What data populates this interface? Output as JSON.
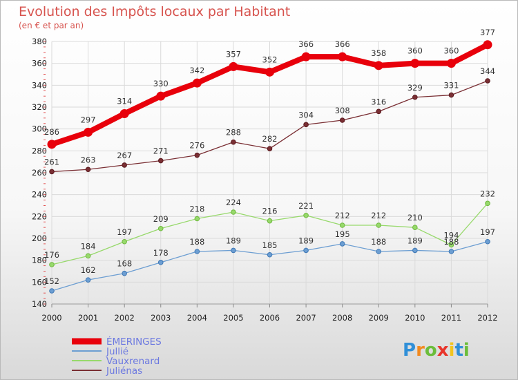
{
  "chart_data": {
    "type": "line",
    "title": "Evolution des Impôts locaux par Habitant",
    "subtitle": "(en € et par an)",
    "x": [
      2000,
      2001,
      2002,
      2003,
      2004,
      2005,
      2006,
      2007,
      2008,
      2009,
      2010,
      2011,
      2012
    ],
    "ylim": [
      140,
      380
    ],
    "yticks": [
      140,
      160,
      180,
      200,
      220,
      240,
      260,
      280,
      300,
      320,
      340,
      360,
      380
    ],
    "grid": true,
    "legend_position": "bottom-left",
    "series": [
      {
        "name": "ÉMERINGES",
        "color": "#e8000b",
        "values": [
          286,
          297,
          314,
          330,
          342,
          357,
          352,
          366,
          366,
          358,
          360,
          360,
          377
        ]
      },
      {
        "name": "Jullié",
        "color": "#6c9ed2",
        "values": [
          152,
          162,
          168,
          178,
          188,
          189,
          185,
          189,
          195,
          188,
          189,
          188,
          197
        ]
      },
      {
        "name": "Vauxrenard",
        "color": "#97d96b",
        "values": [
          176,
          184,
          197,
          209,
          218,
          224,
          216,
          221,
          212,
          212,
          210,
          194,
          232
        ]
      },
      {
        "name": "Juliénas",
        "color": "#7a2f34",
        "values": [
          261,
          263,
          267,
          271,
          276,
          288,
          282,
          304,
          308,
          316,
          329,
          331,
          344
        ]
      }
    ]
  },
  "brand": {
    "name": "Proxiti",
    "letters": [
      "P",
      "r",
      "o",
      "x",
      "i",
      "t",
      "i"
    ]
  }
}
